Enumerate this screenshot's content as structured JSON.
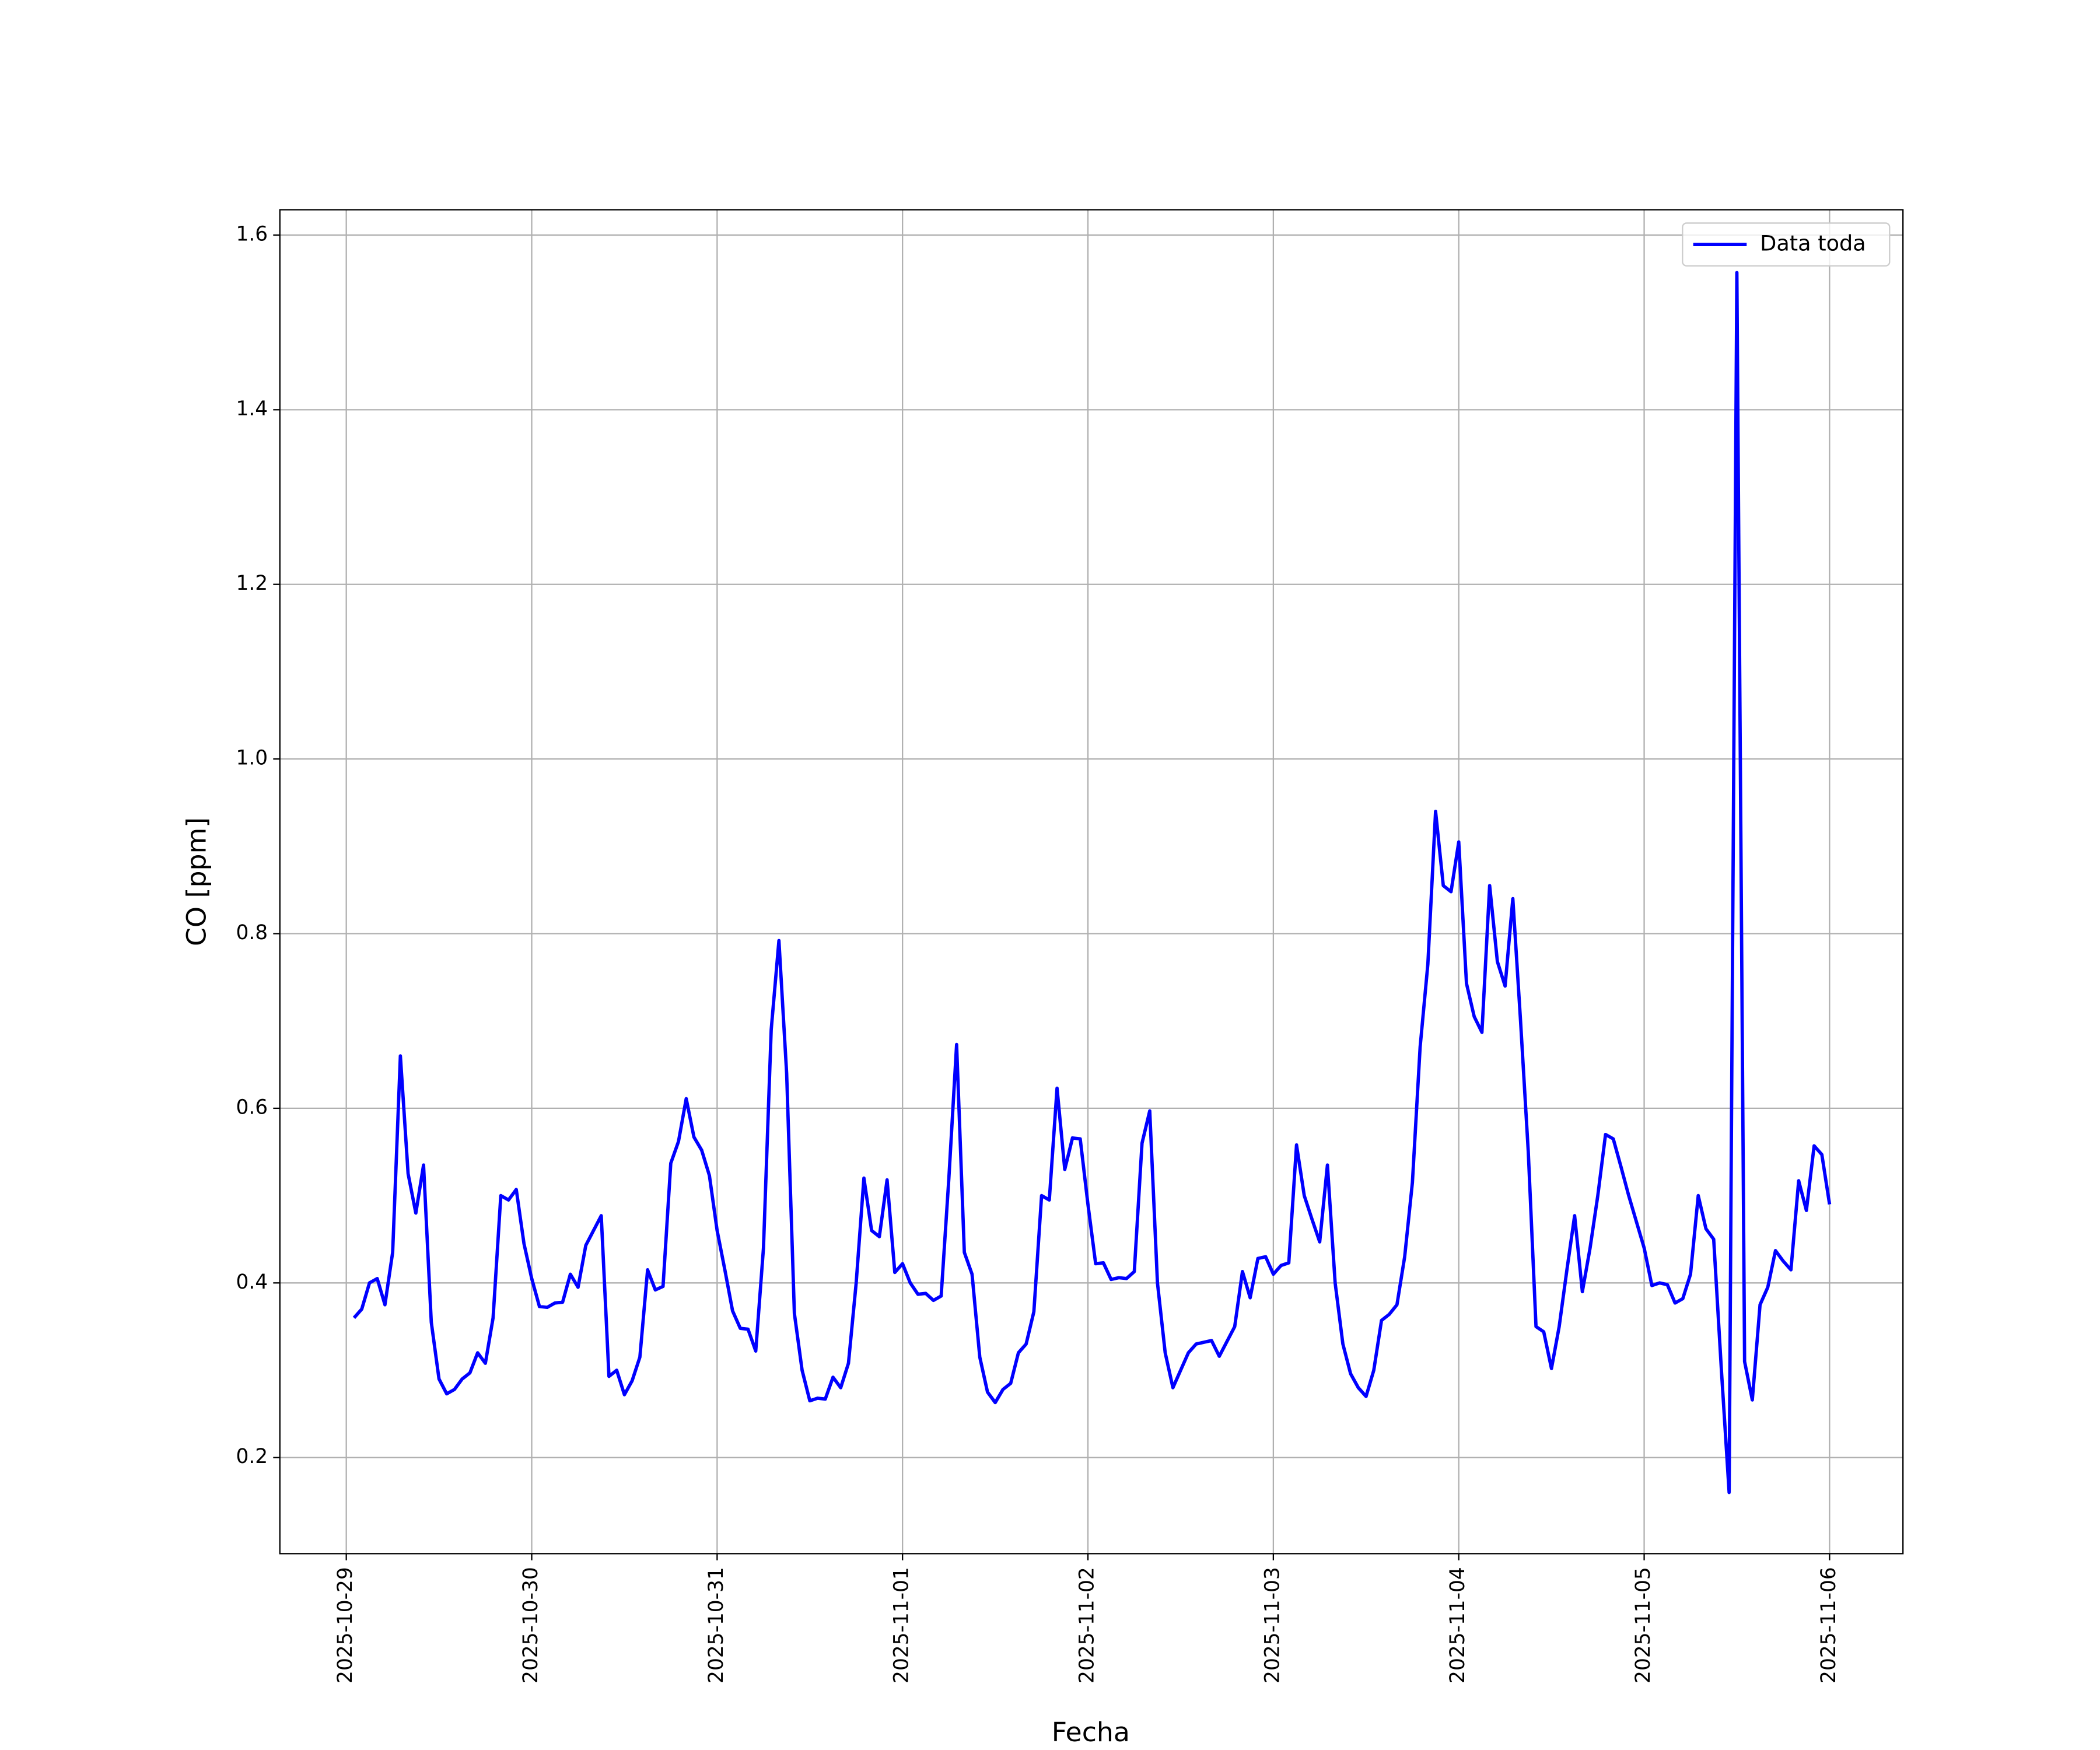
{
  "chart_data": {
    "type": "line",
    "xlabel": "Fecha",
    "ylabel": "CO [ppm]",
    "legend": "upper right",
    "grid": true,
    "xlim": [
      "2025-10-28T15:24",
      "2025-11-06T09:30"
    ],
    "ylim": [
      0.09,
      1.629
    ],
    "xticks": [
      "2025-10-29",
      "2025-10-30",
      "2025-10-31",
      "2025-11-01",
      "2025-11-02",
      "2025-11-03",
      "2025-11-04",
      "2025-11-05",
      "2025-11-06"
    ],
    "yticks": [
      0.2,
      0.4,
      0.6,
      0.8,
      {
        "value": 1.0,
        "label": "1.0"
      },
      1.2,
      1.4,
      1.6
    ],
    "x": [
      "2025-10-29T01:00",
      "2025-10-29T02:00",
      "2025-10-29T03:00",
      "2025-10-29T04:00",
      "2025-10-29T05:00",
      "2025-10-29T06:00",
      "2025-10-29T07:00",
      "2025-10-29T08:00",
      "2025-10-29T09:00",
      "2025-10-29T10:00",
      "2025-10-29T11:00",
      "2025-10-29T12:00",
      "2025-10-29T13:00",
      "2025-10-29T14:00",
      "2025-10-29T15:00",
      "2025-10-29T16:00",
      "2025-10-29T17:00",
      "2025-10-29T18:00",
      "2025-10-29T19:00",
      "2025-10-29T20:00",
      "2025-10-29T21:00",
      "2025-10-29T22:00",
      "2025-10-29T23:00",
      "2025-10-30T00:00",
      "2025-10-30T01:00",
      "2025-10-30T02:00",
      "2025-10-30T03:00",
      "2025-10-30T04:00",
      "2025-10-30T05:00",
      "2025-10-30T06:00",
      "2025-10-30T07:00",
      "2025-10-30T08:00",
      "2025-10-30T09:00",
      "2025-10-30T10:00",
      "2025-10-30T11:00",
      "2025-10-30T12:00",
      "2025-10-30T13:00",
      "2025-10-30T14:00",
      "2025-10-30T15:00",
      "2025-10-30T16:00",
      "2025-10-30T17:00",
      "2025-10-30T18:00",
      "2025-10-30T19:00",
      "2025-10-30T20:00",
      "2025-10-30T21:00",
      "2025-10-30T22:00",
      "2025-10-30T23:00",
      "2025-10-31T00:00",
      "2025-10-31T01:00",
      "2025-10-31T02:00",
      "2025-10-31T03:00",
      "2025-10-31T04:00",
      "2025-10-31T05:00",
      "2025-10-31T06:00",
      "2025-10-31T07:00",
      "2025-10-31T08:00",
      "2025-10-31T09:00",
      "2025-10-31T10:00",
      "2025-10-31T11:00",
      "2025-10-31T12:00",
      "2025-10-31T13:00",
      "2025-10-31T14:00",
      "2025-10-31T15:00",
      "2025-10-31T16:00",
      "2025-10-31T17:00",
      "2025-10-31T18:00",
      "2025-10-31T19:00",
      "2025-10-31T20:00",
      "2025-10-31T21:00",
      "2025-10-31T22:00",
      "2025-10-31T23:00",
      "2025-11-01T00:00",
      "2025-11-01T01:00",
      "2025-11-01T02:00",
      "2025-11-01T03:00",
      "2025-11-01T04:00",
      "2025-11-01T05:00",
      "2025-11-01T06:00",
      "2025-11-01T07:00",
      "2025-11-01T08:00",
      "2025-11-01T09:00",
      "2025-11-01T10:00",
      "2025-11-01T11:00",
      "2025-11-01T12:00",
      "2025-11-01T13:00",
      "2025-11-01T14:00",
      "2025-11-01T15:00",
      "2025-11-01T16:00",
      "2025-11-01T17:00",
      "2025-11-01T18:00",
      "2025-11-01T19:00",
      "2025-11-01T20:00",
      "2025-11-01T21:00",
      "2025-11-01T22:00",
      "2025-11-01T23:00",
      "2025-11-02T00:00",
      "2025-11-02T01:00",
      "2025-11-02T02:00",
      "2025-11-02T03:00",
      "2025-11-02T04:00",
      "2025-11-02T05:00",
      "2025-11-02T06:00",
      "2025-11-02T07:00",
      "2025-11-02T08:00",
      "2025-11-02T09:00",
      "2025-11-02T10:00",
      "2025-11-02T11:00",
      "2025-11-02T12:00",
      "2025-11-02T13:00",
      "2025-11-02T14:00",
      "2025-11-02T15:00",
      "2025-11-02T16:00",
      "2025-11-02T17:00",
      "2025-11-02T18:00",
      "2025-11-02T19:00",
      "2025-11-02T20:00",
      "2025-11-02T21:00",
      "2025-11-02T22:00",
      "2025-11-02T23:00",
      "2025-11-03T00:00",
      "2025-11-03T01:00",
      "2025-11-03T02:00",
      "2025-11-03T03:00",
      "2025-11-03T04:00",
      "2025-11-03T05:00",
      "2025-11-03T06:00",
      "2025-11-03T07:00",
      "2025-11-03T08:00",
      "2025-11-03T09:00",
      "2025-11-03T10:00",
      "2025-11-03T11:00",
      "2025-11-03T12:00",
      "2025-11-03T13:00",
      "2025-11-03T14:00",
      "2025-11-03T15:00",
      "2025-11-03T16:00",
      "2025-11-03T17:00",
      "2025-11-03T18:00",
      "2025-11-03T19:00",
      "2025-11-03T20:00",
      "2025-11-03T21:00",
      "2025-11-03T22:00",
      "2025-11-03T23:00",
      "2025-11-04T00:00",
      "2025-11-04T01:00",
      "2025-11-04T02:00",
      "2025-11-04T03:00",
      "2025-11-04T04:00",
      "2025-11-04T05:00",
      "2025-11-04T06:00",
      "2025-11-04T07:00",
      "2025-11-04T08:00",
      "2025-11-04T09:00",
      "2025-11-04T10:00",
      "2025-11-04T11:00",
      "2025-11-04T12:00",
      "2025-11-04T13:00",
      "2025-11-04T14:00",
      "2025-11-04T15:00",
      "2025-11-04T16:00",
      "2025-11-04T17:00",
      "2025-11-04T18:00",
      "2025-11-04T19:00",
      "2025-11-04T20:00",
      "2025-11-04T21:00",
      "2025-11-04T22:00",
      "2025-11-04T23:00",
      "2025-11-05T00:00",
      "2025-11-05T01:00",
      "2025-11-05T02:00",
      "2025-11-05T03:00",
      "2025-11-05T04:00",
      "2025-11-05T05:00",
      "2025-11-05T06:00",
      "2025-11-05T07:00",
      "2025-11-05T08:00",
      "2025-11-05T09:00",
      "2025-11-05T10:00",
      "2025-11-05T11:00",
      "2025-11-05T12:00",
      "2025-11-05T13:00",
      "2025-11-05T14:00",
      "2025-11-05T15:00",
      "2025-11-05T16:00",
      "2025-11-05T17:00",
      "2025-11-05T18:00",
      "2025-11-05T19:00",
      "2025-11-05T20:00",
      "2025-11-05T21:00",
      "2025-11-05T22:00",
      "2025-11-05T23:00",
      "2025-11-06T00:00"
    ],
    "series": [
      {
        "name": "Data toda",
        "color": "#0000ff",
        "values": [
          0.36,
          0.37,
          0.4,
          0.405,
          0.375,
          0.435,
          0.66,
          0.525,
          0.48,
          0.535,
          0.355,
          0.29,
          0.273,
          0.278,
          0.29,
          0.297,
          0.32,
          0.308,
          0.36,
          0.5,
          0.495,
          0.507,
          0.445,
          0.405,
          0.373,
          0.372,
          0.377,
          0.378,
          0.41,
          0.395,
          0.443,
          0.46,
          0.477,
          0.293,
          0.3,
          0.272,
          0.288,
          0.315,
          0.415,
          0.392,
          0.396,
          0.537,
          0.562,
          0.611,
          0.567,
          0.552,
          0.523,
          0.46,
          0.415,
          0.368,
          0.348,
          0.347,
          0.322,
          0.44,
          0.69,
          0.792,
          0.64,
          0.365,
          0.3,
          0.265,
          0.268,
          0.267,
          0.292,
          0.28,
          0.308,
          0.4,
          0.52,
          0.46,
          0.453,
          0.518,
          0.412,
          0.422,
          0.4,
          0.387,
          0.388,
          0.38,
          0.385,
          0.52,
          0.673,
          0.435,
          0.41,
          0.315,
          0.275,
          0.263,
          0.278,
          0.285,
          0.32,
          0.33,
          0.367,
          0.5,
          0.495,
          0.623,
          0.53,
          0.566,
          0.565,
          0.49,
          0.422,
          0.423,
          0.404,
          0.406,
          0.405,
          0.413,
          0.56,
          0.597,
          0.4,
          0.32,
          0.28,
          0.3,
          0.32,
          0.33,
          0.332,
          0.334,
          0.316,
          0.333,
          0.35,
          0.413,
          0.383,
          0.428,
          0.43,
          0.41,
          0.42,
          0.423,
          0.558,
          0.5,
          0.473,
          0.447,
          0.535,
          0.4,
          0.33,
          0.296,
          0.28,
          0.27,
          0.3,
          0.357,
          0.364,
          0.375,
          0.43,
          0.515,
          0.67,
          0.765,
          0.94,
          0.855,
          0.848,
          0.905,
          0.743,
          0.705,
          0.687,
          0.855,
          0.768,
          0.74,
          0.84,
          0.7,
          0.55,
          0.35,
          0.344,
          0.302,
          0.35,
          0.415,
          0.477,
          0.39,
          0.44,
          0.5,
          0.57,
          0.565,
          0.533,
          0.5,
          0.47,
          0.44,
          0.397,
          0.4,
          0.398,
          0.377,
          0.382,
          0.41,
          0.5,
          0.462,
          0.45,
          0.3,
          0.16,
          1.557,
          0.31,
          0.266,
          0.375,
          0.395,
          0.437,
          0.425,
          0.415,
          0.517,
          0.483,
          0.557,
          0.547,
          0.49
        ]
      }
    ]
  }
}
